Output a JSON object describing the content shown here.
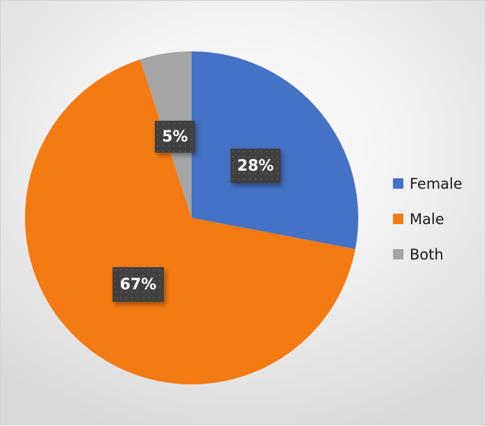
{
  "chart_data": {
    "type": "pie",
    "title": "",
    "categories": [
      "Female",
      "Male",
      "Both"
    ],
    "values": [
      28,
      67,
      5
    ],
    "value_labels": [
      "28%",
      "67%",
      "5%"
    ],
    "colors": [
      "#4472c4",
      "#f47a12",
      "#a5a5a5"
    ],
    "legend_position": "right",
    "start_angle": "12 o'clock, clockwise"
  },
  "labels": {
    "female": "28%",
    "male": "67%",
    "both": "5%"
  },
  "legend": {
    "items": [
      {
        "label": "Female",
        "color": "#4472c4"
      },
      {
        "label": "Male",
        "color": "#f47a12"
      },
      {
        "label": "Both",
        "color": "#a5a5a5"
      }
    ]
  }
}
